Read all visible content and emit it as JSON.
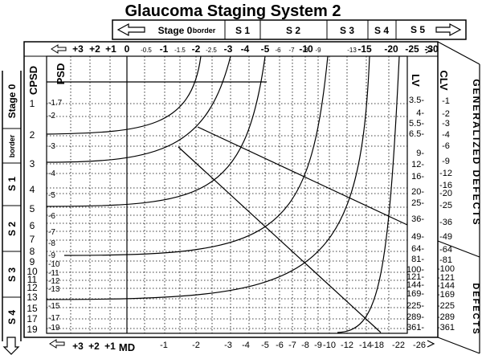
{
  "title": "Glaucoma Staging System 2",
  "stage_bar_top": {
    "arrow": "left-arrow",
    "labels": [
      "Stage 0",
      "border",
      "S 1",
      "S 2",
      "S 3",
      "S 4",
      "S 5"
    ],
    "end_arrow": "right-arrow"
  },
  "stage_bar_left": {
    "labels": [
      "Stage 0",
      "border",
      "S 1",
      "S 2",
      "S 3",
      "S 4"
    ],
    "end_arrow": "down-arrow"
  },
  "axis_titles": {
    "cpsd": "CPSD",
    "psd": "PSD",
    "lv": "LV",
    "clv": "CLV",
    "md": "MD"
  },
  "side_labels": {
    "generalized": "GENERALIZED DEFECTS",
    "localized": "DEFECTS"
  },
  "top_md_ticks": {
    "major": [
      "+3",
      "+2",
      "+1",
      "0",
      "-1",
      "-2",
      "-3",
      "-4",
      "-5",
      "-10",
      "-15",
      "-20",
      "-25",
      "-30"
    ],
    "minor": [
      "-0.5",
      "-1.5",
      "-2.5",
      "-6",
      "-7",
      "-8",
      "-9",
      "-13"
    ]
  },
  "bottom_md_ticks": {
    "left": [
      "+3",
      "+2",
      "+1"
    ],
    "values": [
      "-1",
      "-2",
      "-3",
      "-4",
      "-5",
      "-6",
      "-7",
      "-8",
      "-9",
      "-10",
      "-12",
      "-14",
      "-18",
      "-22",
      "-26"
    ]
  },
  "cpsd_ticks": [
    "1",
    "2",
    "3",
    "4",
    "5",
    "6",
    "7",
    "8",
    "9",
    "10",
    "11",
    "12",
    "13",
    "15",
    "17",
    "19"
  ],
  "psd_ticks": [
    "1.7",
    "2",
    "3",
    "4",
    "5",
    "6",
    "7",
    "8",
    "9",
    "10",
    "11",
    "12",
    "13",
    "15",
    "17",
    "19"
  ],
  "lv_ticks": [
    "3.5",
    "4",
    "5.5",
    "6.5",
    "9",
    "12",
    "16",
    "20",
    "25",
    "36",
    "49",
    "64",
    "81",
    "100",
    "121",
    "144",
    "169",
    "225",
    "289",
    "361"
  ],
  "clv_ticks": [
    "1",
    "2",
    "3",
    "4",
    "6",
    "9",
    "12",
    "16",
    "20",
    "25",
    "36",
    "49",
    "64",
    "81",
    "100",
    "121",
    "144",
    "169",
    "225",
    "289",
    "361"
  ],
  "colors": {
    "line": "#000000",
    "grid": "#000000",
    "background": "#ffffff"
  }
}
